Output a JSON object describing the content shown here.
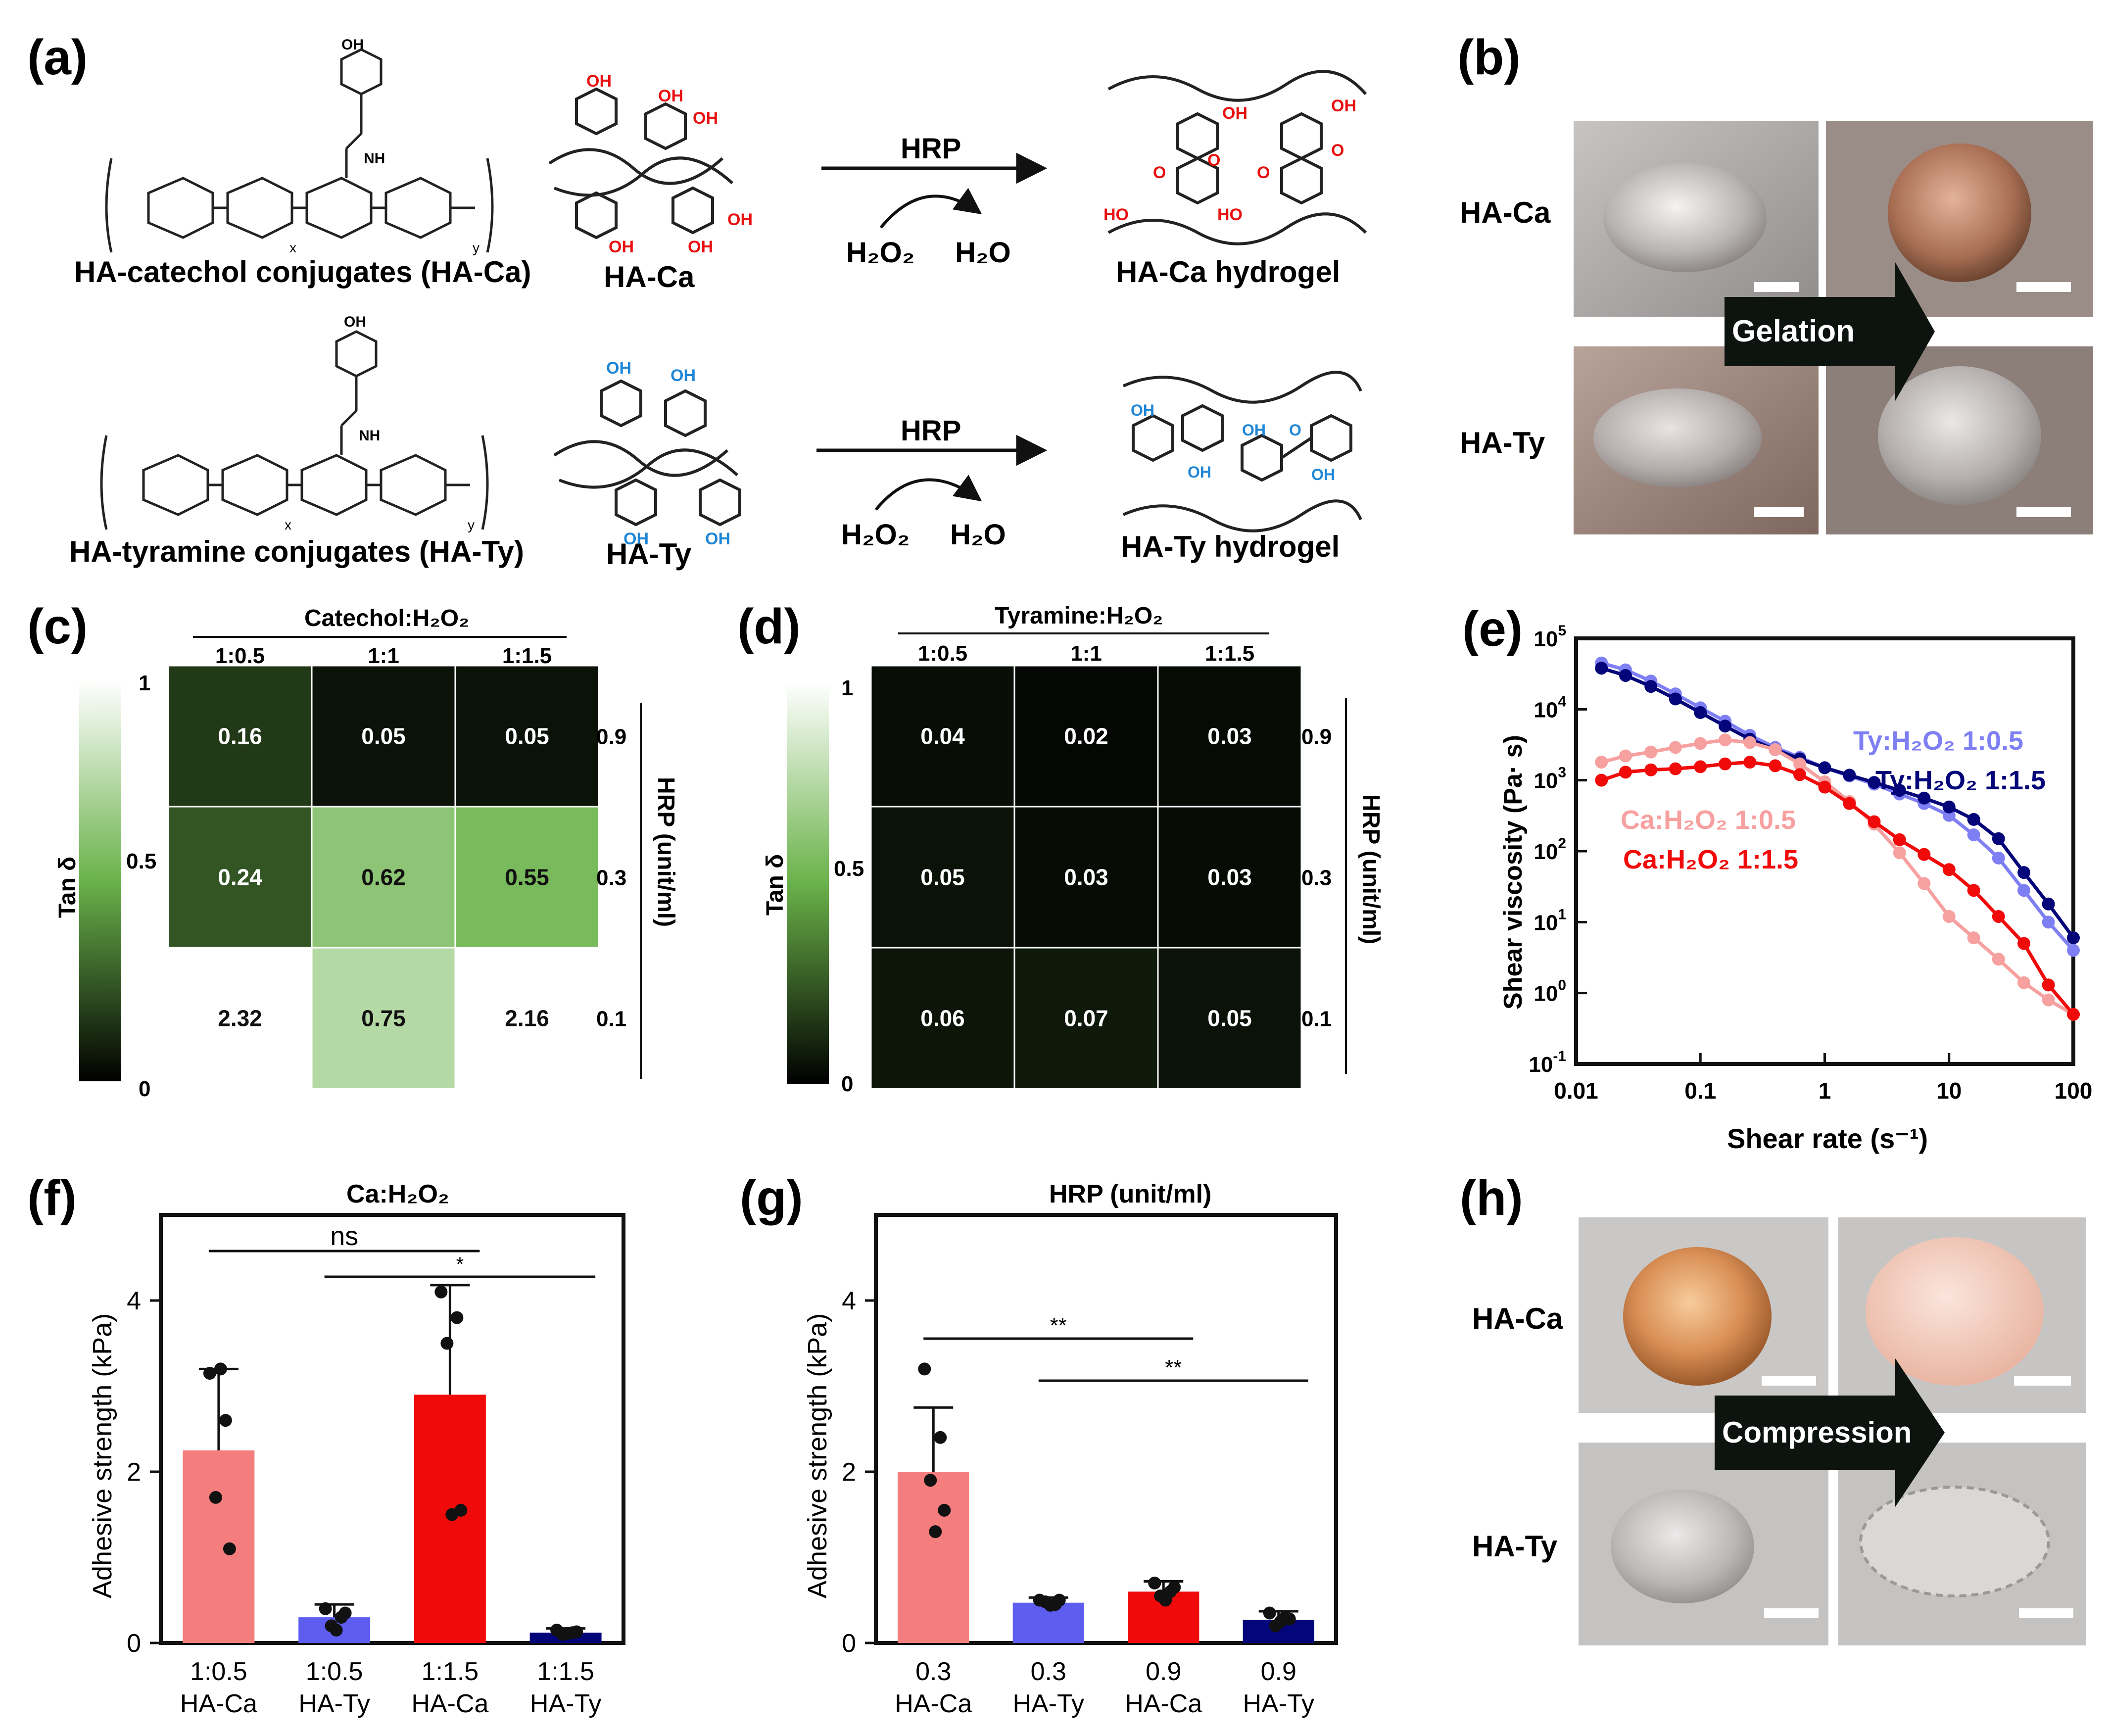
{
  "colors": {
    "salmon": "#f47e7e",
    "ca_light": "#f7a0a0",
    "red": "#f00a0a",
    "periwinkle": "#5d5ef0",
    "ty_light": "#7f7ff4",
    "navy": "#05057a",
    "bond_red": "#e81010",
    "bond_blue": "#1f86d6"
  },
  "panel_a": {
    "letter": "(a)",
    "ca_conjugate_label": "HA-catechol conjugates (HA-Ca)",
    "ty_conjugate_label": "HA-tyramine conjugates (HA-Ty)",
    "ca_short": "HA-Ca",
    "ty_short": "HA-Ty",
    "enzyme": "HRP",
    "reactant": "H₂O₂",
    "product": "H₂O",
    "ca_hydrogel": "HA-Ca hydrogel",
    "ty_hydrogel": "HA-Ty hydrogel",
    "oh": "OH",
    "o": "O",
    "ho": "HO",
    "nh": "NH",
    "x": "x",
    "y": "y"
  },
  "panel_b": {
    "letter": "(b)",
    "row1": "HA-Ca",
    "row2": "HA-Ty",
    "arrow": "Gelation"
  },
  "panel_c": {
    "letter": "(c)",
    "title": "Catechol:H₂O₂",
    "cols": [
      "1:0.5",
      "1:1",
      "1:1.5"
    ],
    "rows": [
      "0.9",
      "0.3",
      "0.1"
    ],
    "values": [
      [
        "0.16",
        "0.05",
        "0.05"
      ],
      [
        "0.24",
        "0.62",
        "0.55"
      ],
      [
        "2.32",
        "0.75",
        "2.16"
      ]
    ],
    "row_axis": "HRP (unit/ml)",
    "cbar_label": "Tan δ",
    "cbar_ticks": [
      "1",
      "0.5",
      "0"
    ]
  },
  "panel_d": {
    "letter": "(d)",
    "title": "Tyramine:H₂O₂",
    "cols": [
      "1:0.5",
      "1:1",
      "1:1.5"
    ],
    "rows": [
      "0.9",
      "0.3",
      "0.1"
    ],
    "values": [
      [
        "0.04",
        "0.02",
        "0.03"
      ],
      [
        "0.05",
        "0.03",
        "0.03"
      ],
      [
        "0.06",
        "0.07",
        "0.05"
      ]
    ],
    "row_axis": "HRP (unit/ml)",
    "cbar_label": "Tan δ",
    "cbar_ticks": [
      "1",
      "0.5",
      "0"
    ]
  },
  "panel_e": {
    "letter": "(e)",
    "ylabel": "Shear viscosity (Pa· s)",
    "xlabel": "Shear rate (s⁻¹)",
    "xticks": [
      "0.01",
      "0.1",
      "1",
      "10",
      "100"
    ],
    "yticks": [
      {
        "base": "10",
        "exp": "5"
      },
      {
        "base": "10",
        "exp": "4"
      },
      {
        "base": "10",
        "exp": "3"
      },
      {
        "base": "10",
        "exp": "2"
      },
      {
        "base": "10",
        "exp": "1"
      },
      {
        "base": "10",
        "exp": "0"
      },
      {
        "base": "10",
        "exp": "-1"
      }
    ],
    "legend": [
      "Ty:H₂O₂ 1:0.5",
      "Ty:H₂O₂ 1:1.5",
      "Ca:H₂O₂ 1:0.5",
      "Ca:H₂O₂ 1:1.5"
    ]
  },
  "panel_f": {
    "letter": "(f)",
    "title": "Ca:H₂O₂",
    "ylabel": "Adhesive strength (kPa)",
    "yticks": [
      "0",
      "2",
      "4"
    ],
    "cats_top": [
      "1:0.5",
      "1:0.5",
      "1:1.5",
      "1:1.5"
    ],
    "cats_bottom": [
      "HA-Ca",
      "HA-Ty",
      "HA-Ca",
      "HA-Ty"
    ],
    "sig1": "ns",
    "sig2": "*"
  },
  "panel_g": {
    "letter": "(g)",
    "title": "HRP (unit/ml)",
    "ylabel": "Adhesive strength (kPa)",
    "yticks": [
      "0",
      "2",
      "4"
    ],
    "cats_top": [
      "0.3",
      "0.3",
      "0.9",
      "0.9"
    ],
    "cats_bottom": [
      "HA-Ca",
      "HA-Ty",
      "HA-Ca",
      "HA-Ty"
    ],
    "sig1": "**",
    "sig2": "**"
  },
  "panel_h": {
    "letter": "(h)",
    "row1": "HA-Ca",
    "row2": "HA-Ty",
    "arrow": "Compression"
  },
  "chart_data": [
    {
      "type": "heatmap",
      "panel": "c",
      "title": "Catechol:H2O2",
      "xlabel": "Catechol:H2O2",
      "ylabel": "HRP (unit/ml)",
      "x": [
        "1:0.5",
        "1:1",
        "1:1.5"
      ],
      "y": [
        "0.9",
        "0.3",
        "0.1"
      ],
      "z": [
        [
          0.16,
          0.05,
          0.05
        ],
        [
          0.24,
          0.62,
          0.55
        ],
        [
          2.32,
          0.75,
          2.16
        ]
      ],
      "colorbar": {
        "label": "Tan δ",
        "range": [
          0,
          1
        ]
      }
    },
    {
      "type": "heatmap",
      "panel": "d",
      "title": "Tyramine:H2O2",
      "xlabel": "Tyramine:H2O2",
      "ylabel": "HRP (unit/ml)",
      "x": [
        "1:0.5",
        "1:1",
        "1:1.5"
      ],
      "y": [
        "0.9",
        "0.3",
        "0.1"
      ],
      "z": [
        [
          0.04,
          0.02,
          0.03
        ],
        [
          0.05,
          0.03,
          0.03
        ],
        [
          0.06,
          0.07,
          0.05
        ]
      ],
      "colorbar": {
        "label": "Tan δ",
        "range": [
          0,
          1
        ]
      }
    },
    {
      "type": "line",
      "panel": "e",
      "xscale": "log",
      "yscale": "log",
      "xlabel": "Shear rate (s-1)",
      "ylabel": "Shear viscosity (Pa· s)",
      "xlim": [
        0.01,
        100
      ],
      "ylim": [
        0.1,
        100000
      ],
      "x": [
        0.016,
        0.025,
        0.04,
        0.063,
        0.1,
        0.158,
        0.25,
        0.4,
        0.63,
        1.0,
        1.58,
        2.5,
        4.0,
        6.3,
        10,
        15.8,
        25,
        40,
        63,
        100
      ],
      "series": [
        {
          "name": "Ty:H2O2 1:0.5",
          "color": "#7f7ff4",
          "values": [
            45000,
            36000,
            25000,
            16500,
            10500,
            6800,
            4300,
            2900,
            2100,
            1500,
            1150,
            880,
            640,
            470,
            320,
            170,
            80,
            28,
            10,
            4
          ]
        },
        {
          "name": "Ty:H2O2 1:1.5",
          "color": "#05057a",
          "values": [
            38000,
            30000,
            21000,
            14000,
            9000,
            5800,
            3800,
            2700,
            2000,
            1500,
            1180,
            930,
            720,
            560,
            420,
            280,
            150,
            50,
            18,
            6
          ]
        },
        {
          "name": "Ca:H2O2 1:0.5",
          "color": "#f7a0a0",
          "values": [
            1800,
            2200,
            2500,
            2900,
            3300,
            3700,
            3400,
            2700,
            1700,
            950,
            500,
            240,
            95,
            35,
            12,
            6,
            3,
            1.4,
            0.8,
            0.5
          ]
        },
        {
          "name": "Ca:H2O2 1:1.5",
          "color": "#f00a0a",
          "values": [
            1000,
            1300,
            1400,
            1450,
            1550,
            1700,
            1800,
            1600,
            1200,
            800,
            470,
            260,
            145,
            90,
            55,
            28,
            12,
            5,
            1.3,
            0.5
          ]
        }
      ]
    },
    {
      "type": "bar",
      "panel": "f",
      "title": "Ca:H2O2",
      "ylabel": "Adhesive strength (kPa)",
      "ylim": [
        0,
        5
      ],
      "categories": [
        "1:0.5 HA-Ca",
        "1:0.5 HA-Ty",
        "1:1.5 HA-Ca",
        "1:1.5 HA-Ty"
      ],
      "values": [
        2.25,
        0.3,
        2.9,
        0.12
      ],
      "errors": [
        0.95,
        0.15,
        1.28,
        0.05
      ],
      "colors": [
        "#f47e7e",
        "#5d5ef0",
        "#f00a0a",
        "#05057a"
      ],
      "points": [
        [
          3.15,
          2.6,
          1.7,
          1.1,
          3.2
        ],
        [
          0.4,
          0.3,
          0.2,
          0.35,
          0.15
        ],
        [
          4.1,
          3.8,
          3.5,
          1.55,
          1.5
        ],
        [
          0.15,
          0.12,
          0.1,
          0.13,
          0.11
        ]
      ],
      "significance": [
        {
          "pair": [
            0,
            2
          ],
          "label": "ns"
        },
        {
          "pair": [
            1,
            3
          ],
          "label": "*"
        }
      ]
    },
    {
      "type": "bar",
      "panel": "g",
      "title": "HRP (unit/ml)",
      "ylabel": "Adhesive strength (kPa)",
      "ylim": [
        0,
        5
      ],
      "categories": [
        "0.3 HA-Ca",
        "0.3 HA-Ty",
        "0.9 HA-Ca",
        "0.9 HA-Ty"
      ],
      "values": [
        2.0,
        0.47,
        0.6,
        0.27
      ],
      "errors": [
        0.75,
        0.06,
        0.12,
        0.1
      ],
      "colors": [
        "#f47e7e",
        "#5d5ef0",
        "#f00a0a",
        "#05057a"
      ],
      "points": [
        [
          3.2,
          2.4,
          1.9,
          1.55,
          1.3
        ],
        [
          0.5,
          0.45,
          0.48,
          0.5,
          0.44
        ],
        [
          0.7,
          0.6,
          0.55,
          0.65,
          0.5
        ],
        [
          0.35,
          0.3,
          0.2,
          0.28,
          0.25
        ]
      ],
      "significance": [
        {
          "pair": [
            0,
            2
          ],
          "label": "**"
        },
        {
          "pair": [
            1,
            3
          ],
          "label": "**"
        }
      ]
    }
  ]
}
